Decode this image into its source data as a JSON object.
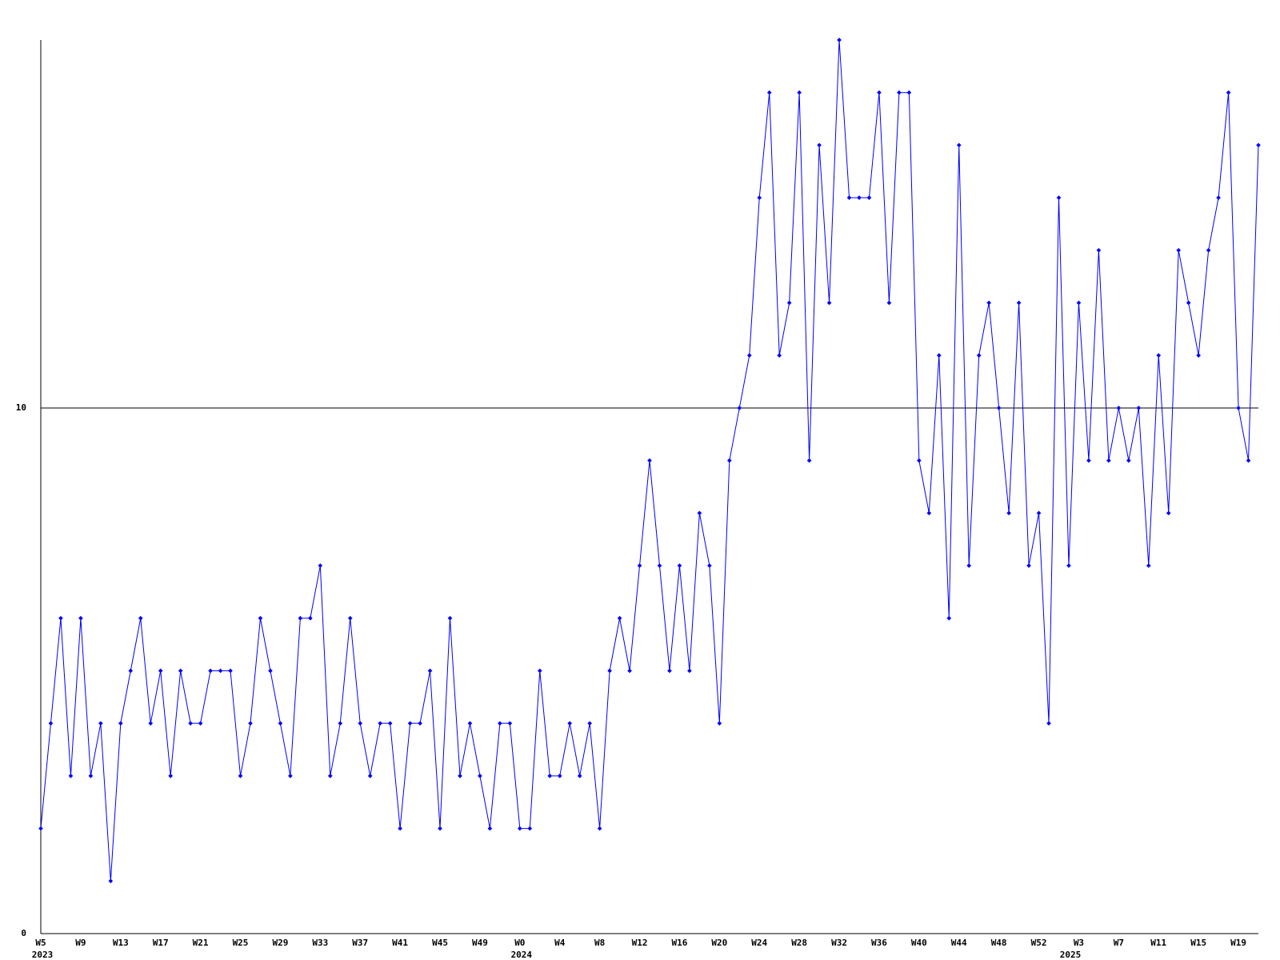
{
  "chart_data": {
    "type": "line",
    "categories": [
      "W5",
      null,
      null,
      null,
      "W9",
      null,
      null,
      null,
      "W13",
      null,
      null,
      null,
      "W17",
      null,
      null,
      null,
      "W21",
      null,
      null,
      null,
      "W25",
      null,
      null,
      null,
      "W29",
      null,
      null,
      null,
      "W33",
      null,
      null,
      null,
      "W37",
      null,
      null,
      null,
      "W41",
      null,
      null,
      null,
      "W45",
      null,
      null,
      null,
      "W49",
      null,
      null,
      null,
      "W0",
      null,
      null,
      null,
      "W4",
      null,
      null,
      null,
      "W8",
      null,
      null,
      null,
      "W12",
      null,
      null,
      null,
      "W16",
      null,
      null,
      null,
      "W20",
      null,
      null,
      null,
      "W24",
      null,
      null,
      null,
      "W28",
      null,
      null,
      null,
      "W32",
      null,
      null,
      null,
      "W36",
      null,
      null,
      null,
      "W40",
      null,
      null,
      null,
      "W44",
      null,
      null,
      null,
      "W48",
      null,
      null,
      null,
      "W52",
      null,
      null,
      null,
      "W3",
      null,
      null,
      null,
      "W7",
      null,
      null,
      null,
      "W11",
      null,
      null,
      null,
      "W15",
      null,
      null,
      null,
      "W19",
      null,
      null
    ],
    "years": [
      "2023",
      null,
      null,
      null,
      null,
      null,
      null,
      null,
      null,
      null,
      null,
      null,
      null,
      null,
      null,
      null,
      null,
      null,
      null,
      null,
      null,
      null,
      null,
      null,
      null,
      null,
      null,
      null,
      null,
      null,
      null,
      null,
      null,
      null,
      null,
      null,
      null,
      null,
      null,
      null,
      null,
      null,
      null,
      null,
      null,
      null,
      null,
      null,
      "2024",
      null,
      null,
      null,
      null,
      null,
      null,
      null,
      null,
      null,
      null,
      null,
      null,
      null,
      null,
      null,
      null,
      null,
      null,
      null,
      null,
      null,
      null,
      null,
      null,
      null,
      null,
      null,
      null,
      null,
      null,
      null,
      null,
      null,
      null,
      null,
      null,
      null,
      null,
      null,
      null,
      null,
      null,
      null,
      null,
      null,
      null,
      null,
      null,
      null,
      null,
      null,
      null,
      null,
      null,
      "2025",
      null,
      null,
      null,
      null,
      null,
      null,
      null,
      null,
      null,
      null,
      null,
      null,
      null,
      null,
      null,
      null,
      null,
      null,
      null,
      null,
      null
    ],
    "series": [
      {
        "color": "#0000ff",
        "values": [
          2,
          4,
          6,
          3,
          6,
          3,
          4,
          1,
          4,
          5,
          6,
          4,
          5,
          3,
          5,
          4,
          4,
          5,
          5,
          5,
          3,
          4,
          6,
          5,
          4,
          3,
          6,
          6,
          7,
          3,
          4,
          6,
          4,
          3,
          4,
          4,
          2,
          4,
          4,
          5,
          2,
          6,
          3,
          4,
          3,
          2,
          4,
          4,
          2,
          2,
          5,
          3,
          3,
          4,
          3,
          4,
          2,
          5,
          6,
          5,
          7,
          9,
          7,
          5,
          7,
          5,
          8,
          7,
          4,
          9,
          10,
          11,
          14,
          16,
          11,
          12,
          16,
          9,
          15,
          12,
          17,
          14,
          14,
          14,
          16,
          12,
          16,
          16,
          9,
          8,
          11,
          6,
          15,
          7,
          11,
          12,
          10,
          8,
          12,
          7,
          8,
          4,
          14,
          7,
          12,
          9,
          13,
          9,
          10,
          9,
          10,
          7,
          11,
          8,
          13,
          12,
          11,
          13,
          14,
          16,
          10,
          9,
          15
        ]
      }
    ],
    "ylim": [
      0,
      17
    ],
    "yticks": [
      0,
      10
    ],
    "grid": true
  }
}
